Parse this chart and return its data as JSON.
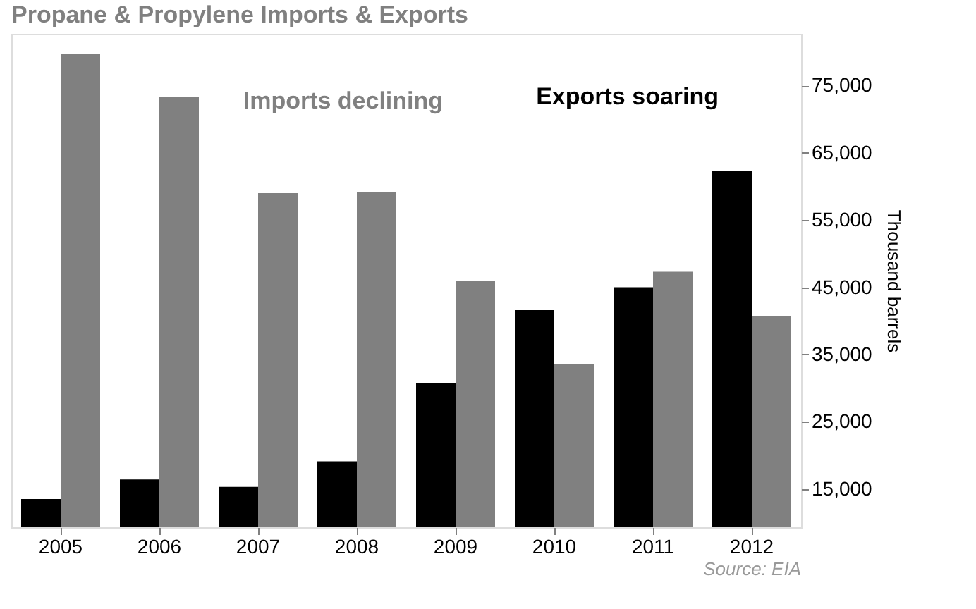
{
  "chart_data": {
    "type": "bar",
    "title": "Propane & Propylene Imports & Exports",
    "y2label": "Thousand barrels",
    "categories": [
      "2005",
      "2006",
      "2007",
      "2008",
      "2009",
      "2010",
      "2011",
      "2012"
    ],
    "series": [
      {
        "name": "Exports soaring",
        "color": "#000000",
        "axis": "y2",
        "values": [
          13500,
          16400,
          15300,
          19100,
          30800,
          41600,
          45000,
          62300
        ]
      },
      {
        "name": "Imports declining",
        "color": "#808080",
        "axis": "y2",
        "values": [
          79700,
          73300,
          59000,
          59100,
          45900,
          33600,
          47300,
          40700
        ]
      }
    ],
    "y2lim": [
      9300,
      82700
    ],
    "y2ticks": [
      {
        "value": 15000,
        "label": "15,000"
      },
      {
        "value": 25000,
        "label": "25,000"
      },
      {
        "value": 35000,
        "label": "35,000"
      },
      {
        "value": 45000,
        "label": "45,000"
      },
      {
        "value": 55000,
        "label": "55,000"
      },
      {
        "value": 65000,
        "label": "65,000"
      },
      {
        "value": 75000,
        "label": "75,000"
      }
    ],
    "grid": false,
    "legend": false,
    "annotations": [
      "Source: EIA"
    ]
  }
}
